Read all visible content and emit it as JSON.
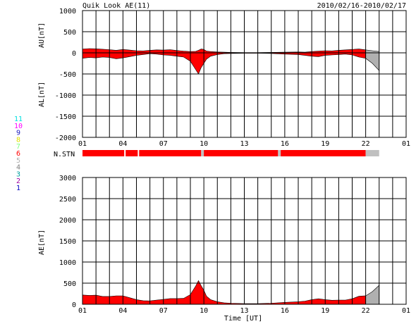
{
  "header": {
    "title": "Quik Look AE(11)",
    "date_range": "2010/02/16-2010/02/17"
  },
  "legend": {
    "station_counts": [
      {
        "label": "11",
        "color": "#00e0e0"
      },
      {
        "label": "10",
        "color": "#ff00ff"
      },
      {
        "label": "9",
        "color": "#2020c0"
      },
      {
        "label": "8",
        "color": "#e0e000"
      },
      {
        "label": "7",
        "color": "#80ff80"
      },
      {
        "label": "6",
        "color": "#ff0000"
      },
      {
        "label": "5",
        "color": "#b0b0b0"
      },
      {
        "label": "4",
        "color": "#808080"
      },
      {
        "label": "3",
        "color": "#00a0a0"
      },
      {
        "label": "2",
        "color": "#a000a0"
      },
      {
        "label": "1",
        "color": "#0000c0"
      }
    ]
  },
  "nstn": {
    "label": "N.STN"
  },
  "chart_data": [
    {
      "type": "area",
      "name": "AU/AL",
      "ylabel_top": "AU[nT]",
      "ylabel_bottom": "AL[nT]",
      "ylim": [
        -2000,
        1000
      ],
      "yticks": [
        "1000",
        "500",
        "0",
        "-500",
        "-1000",
        "-1500",
        "-2000"
      ],
      "xticks": [
        "01",
        "04",
        "07",
        "10",
        "13",
        "16",
        "19",
        "22",
        "01"
      ],
      "x_range_hours": [
        1,
        25
      ],
      "grid": true,
      "colors": {
        "full": "#ff0000",
        "partial": "#b0b0b0"
      },
      "series": [
        {
          "values_x": [
            1.0,
            1.5,
            2.0,
            2.5,
            3.0,
            3.5,
            4.0,
            4.5,
            5.0,
            5.5,
            6.0,
            6.5,
            7.0,
            7.5,
            8.0,
            8.5,
            9.0,
            9.4,
            9.6,
            9.8,
            10.0,
            10.2,
            10.5,
            11.0,
            11.5,
            12.0,
            13.0,
            14.0,
            15.0,
            16.0,
            17.0,
            17.5,
            18.0,
            18.5,
            19.0,
            19.5,
            20.0,
            20.5,
            21.0,
            21.5,
            22.0,
            22.5,
            23.0
          ],
          "au": [
            90,
            100,
            95,
            85,
            75,
            60,
            80,
            65,
            50,
            45,
            60,
            70,
            65,
            75,
            55,
            40,
            30,
            35,
            60,
            90,
            80,
            40,
            30,
            20,
            15,
            10,
            5,
            5,
            10,
            15,
            20,
            15,
            30,
            40,
            50,
            45,
            60,
            70,
            80,
            90,
            70,
            50,
            30
          ],
          "al": [
            -130,
            -110,
            -120,
            -100,
            -110,
            -140,
            -120,
            -90,
            -60,
            -40,
            -20,
            -30,
            -50,
            -60,
            -80,
            -100,
            -200,
            -400,
            -500,
            -350,
            -250,
            -150,
            -80,
            -40,
            -20,
            -15,
            -10,
            -10,
            -15,
            -30,
            -40,
            -60,
            -80,
            -90,
            -60,
            -50,
            -40,
            -30,
            -50,
            -100,
            -130,
            -250,
            -420
          ]
        }
      ]
    },
    {
      "type": "bar",
      "name": "N.STN",
      "segments": [
        {
          "start": 1.0,
          "end": 4.1,
          "status": "full"
        },
        {
          "start": 4.1,
          "end": 4.2,
          "status": "gap"
        },
        {
          "start": 4.2,
          "end": 5.1,
          "status": "full"
        },
        {
          "start": 5.1,
          "end": 5.2,
          "status": "gap"
        },
        {
          "start": 5.2,
          "end": 9.8,
          "status": "full"
        },
        {
          "start": 9.8,
          "end": 10.0,
          "status": "partial"
        },
        {
          "start": 10.0,
          "end": 15.5,
          "status": "full"
        },
        {
          "start": 15.5,
          "end": 15.7,
          "status": "partial"
        },
        {
          "start": 15.7,
          "end": 22.0,
          "status": "full"
        },
        {
          "start": 22.0,
          "end": 23.0,
          "status": "partial"
        }
      ]
    },
    {
      "type": "area",
      "name": "AE",
      "ylabel": "AE[nT]",
      "ylim": [
        0,
        3000
      ],
      "yticks": [
        "3000",
        "2500",
        "2000",
        "1500",
        "1000",
        "500",
        "0"
      ],
      "xticks": [
        "01",
        "04",
        "07",
        "10",
        "13",
        "16",
        "19",
        "22",
        "01"
      ],
      "x_range_hours": [
        1,
        25
      ],
      "xlabel": "Time [UT]",
      "grid": true,
      "colors": {
        "full": "#ff0000",
        "partial": "#b0b0b0"
      },
      "series": [
        {
          "values_x": [
            1.0,
            1.5,
            2.0,
            2.5,
            3.0,
            3.5,
            4.0,
            4.5,
            5.0,
            5.5,
            6.0,
            6.5,
            7.0,
            7.5,
            8.0,
            8.5,
            9.0,
            9.4,
            9.6,
            9.8,
            10.0,
            10.2,
            10.5,
            11.0,
            11.5,
            12.0,
            13.0,
            14.0,
            15.0,
            16.0,
            17.0,
            17.5,
            18.0,
            18.5,
            19.0,
            19.5,
            20.0,
            20.5,
            21.0,
            21.5,
            22.0,
            22.5,
            23.0
          ],
          "ae": [
            220,
            210,
            215,
            185,
            185,
            200,
            200,
            155,
            110,
            85,
            80,
            100,
            115,
            135,
            135,
            140,
            230,
            435,
            560,
            440,
            330,
            190,
            110,
            60,
            35,
            25,
            15,
            15,
            25,
            45,
            60,
            75,
            110,
            130,
            110,
            95,
            100,
            100,
            130,
            190,
            200,
            300,
            450
          ]
        }
      ]
    }
  ]
}
